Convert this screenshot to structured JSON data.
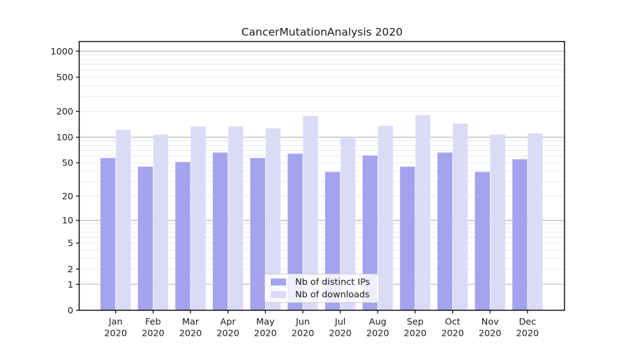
{
  "chart_data": {
    "type": "bar",
    "title": "CancerMutationAnalysis 2020",
    "categories": [
      "Jan",
      "Feb",
      "Mar",
      "Apr",
      "May",
      "Jun",
      "Jul",
      "Aug",
      "Sep",
      "Oct",
      "Nov",
      "Dec"
    ],
    "category_year": "2020",
    "series": [
      {
        "name": "Nb of distinct IPs",
        "color": "#a3a3ee",
        "values": [
          57,
          45,
          51,
          66,
          57,
          64,
          39,
          61,
          45,
          66,
          39,
          55
        ]
      },
      {
        "name": "Nb of downloads",
        "color": "#dbdbf8",
        "values": [
          122,
          107,
          133,
          133,
          127,
          177,
          97,
          136,
          181,
          144,
          107,
          111
        ]
      }
    ],
    "y_ticks": [
      0,
      1,
      2,
      5,
      10,
      20,
      50,
      100,
      200,
      500,
      1000
    ],
    "y_scale": "log1p",
    "ylim": [
      0,
      1000
    ],
    "xlabel": "",
    "ylabel": "",
    "grid": "horizontal",
    "legend_position": "bottom-center",
    "colors": {
      "major_grid": "#b3b3b3",
      "minor_grid": "#e9e9e9",
      "axis": "#000000",
      "background": "#ffffff"
    }
  }
}
